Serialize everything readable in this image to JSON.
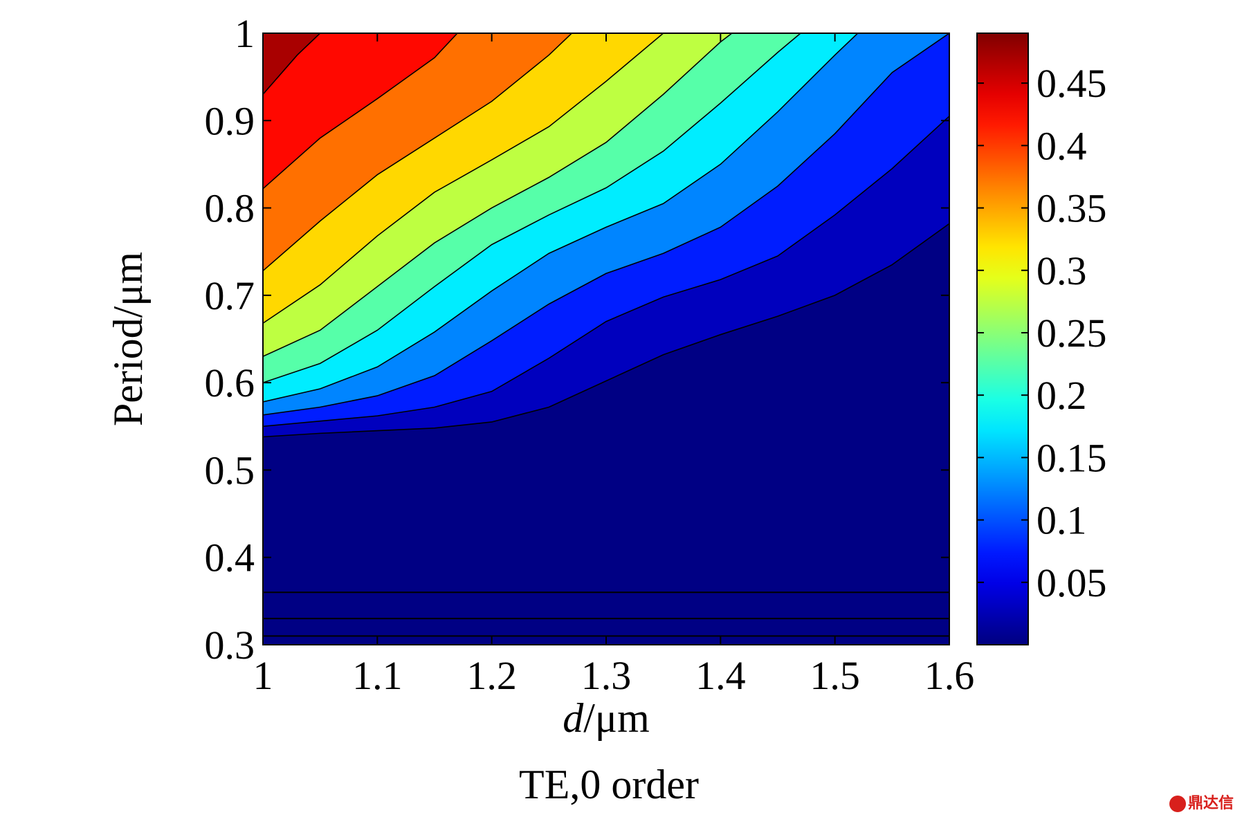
{
  "chart_data": {
    "type": "contourf",
    "title": "TE,0 order",
    "xlabel_italic": "d",
    "xlabel_unit": "/μm",
    "ylabel": "Period/μm",
    "xlim": [
      1,
      1.6
    ],
    "ylim": [
      0.3,
      1
    ],
    "xticks": [
      "1",
      "1.1",
      "1.2",
      "1.3",
      "1.4",
      "1.5",
      "1.6"
    ],
    "yticks": [
      "0.3",
      "0.4",
      "0.5",
      "0.6",
      "0.7",
      "0.8",
      "0.9",
      "1"
    ],
    "colorbar": {
      "range": [
        0,
        0.49
      ],
      "ticks": [
        "0.05",
        "0.1",
        "0.15",
        "0.2",
        "0.25",
        "0.3",
        "0.35",
        "0.4",
        "0.45"
      ],
      "colormap": "jet"
    },
    "levels": [
      0.01,
      0.05,
      0.1,
      0.15,
      0.2,
      0.25,
      0.3,
      0.35,
      0.4,
      0.45
    ],
    "contour_lines": [
      {
        "level": 0.01,
        "points": [
          [
            1.0,
            0.538
          ],
          [
            1.05,
            0.542
          ],
          [
            1.1,
            0.545
          ],
          [
            1.15,
            0.548
          ],
          [
            1.2,
            0.555
          ],
          [
            1.25,
            0.572
          ],
          [
            1.3,
            0.602
          ],
          [
            1.35,
            0.632
          ],
          [
            1.4,
            0.655
          ],
          [
            1.45,
            0.676
          ],
          [
            1.5,
            0.7
          ],
          [
            1.55,
            0.735
          ],
          [
            1.6,
            0.782
          ]
        ]
      },
      {
        "level": 0.05,
        "points": [
          [
            1.0,
            0.55
          ],
          [
            1.05,
            0.556
          ],
          [
            1.1,
            0.562
          ],
          [
            1.15,
            0.572
          ],
          [
            1.2,
            0.59
          ],
          [
            1.25,
            0.628
          ],
          [
            1.3,
            0.67
          ],
          [
            1.35,
            0.698
          ],
          [
            1.4,
            0.718
          ],
          [
            1.45,
            0.745
          ],
          [
            1.5,
            0.792
          ],
          [
            1.55,
            0.845
          ],
          [
            1.6,
            0.905
          ]
        ]
      },
      {
        "level": 0.1,
        "points": [
          [
            1.0,
            0.563
          ],
          [
            1.05,
            0.572
          ],
          [
            1.1,
            0.585
          ],
          [
            1.15,
            0.608
          ],
          [
            1.2,
            0.648
          ],
          [
            1.25,
            0.69
          ],
          [
            1.3,
            0.725
          ],
          [
            1.35,
            0.748
          ],
          [
            1.4,
            0.778
          ],
          [
            1.45,
            0.825
          ],
          [
            1.5,
            0.885
          ],
          [
            1.55,
            0.955
          ],
          [
            1.6,
            1.0
          ]
        ]
      },
      {
        "level": 0.15,
        "points": [
          [
            1.0,
            0.578
          ],
          [
            1.05,
            0.593
          ],
          [
            1.1,
            0.618
          ],
          [
            1.15,
            0.658
          ],
          [
            1.2,
            0.705
          ],
          [
            1.25,
            0.748
          ],
          [
            1.3,
            0.778
          ],
          [
            1.35,
            0.805
          ],
          [
            1.4,
            0.85
          ],
          [
            1.45,
            0.91
          ],
          [
            1.5,
            0.975
          ],
          [
            1.52,
            1.0
          ]
        ]
      },
      {
        "level": 0.2,
        "points": [
          [
            1.0,
            0.6
          ],
          [
            1.05,
            0.622
          ],
          [
            1.1,
            0.66
          ],
          [
            1.15,
            0.71
          ],
          [
            1.2,
            0.758
          ],
          [
            1.25,
            0.792
          ],
          [
            1.3,
            0.823
          ],
          [
            1.35,
            0.865
          ],
          [
            1.4,
            0.92
          ],
          [
            1.45,
            0.978
          ],
          [
            1.47,
            1.0
          ]
        ]
      },
      {
        "level": 0.25,
        "points": [
          [
            1.0,
            0.63
          ],
          [
            1.05,
            0.66
          ],
          [
            1.1,
            0.71
          ],
          [
            1.15,
            0.76
          ],
          [
            1.2,
            0.8
          ],
          [
            1.25,
            0.835
          ],
          [
            1.3,
            0.875
          ],
          [
            1.35,
            0.93
          ],
          [
            1.4,
            0.99
          ],
          [
            1.41,
            1.0
          ]
        ]
      },
      {
        "level": 0.3,
        "points": [
          [
            1.0,
            0.668
          ],
          [
            1.05,
            0.712
          ],
          [
            1.1,
            0.768
          ],
          [
            1.15,
            0.818
          ],
          [
            1.2,
            0.855
          ],
          [
            1.25,
            0.893
          ],
          [
            1.3,
            0.945
          ],
          [
            1.35,
            1.0
          ]
        ]
      },
      {
        "level": 0.35,
        "points": [
          [
            1.0,
            0.728
          ],
          [
            1.05,
            0.785
          ],
          [
            1.1,
            0.838
          ],
          [
            1.15,
            0.88
          ],
          [
            1.2,
            0.922
          ],
          [
            1.25,
            0.975
          ],
          [
            1.27,
            1.0
          ]
        ]
      },
      {
        "level": 0.4,
        "points": [
          [
            1.0,
            0.822
          ],
          [
            1.05,
            0.88
          ],
          [
            1.1,
            0.925
          ],
          [
            1.15,
            0.972
          ],
          [
            1.17,
            1.0
          ]
        ]
      },
      {
        "level": 0.45,
        "points": [
          [
            1.0,
            0.93
          ],
          [
            1.03,
            0.975
          ],
          [
            1.05,
            1.0
          ]
        ]
      }
    ],
    "horizontal_lines": [
      0.31,
      0.33,
      0.36
    ]
  }
}
